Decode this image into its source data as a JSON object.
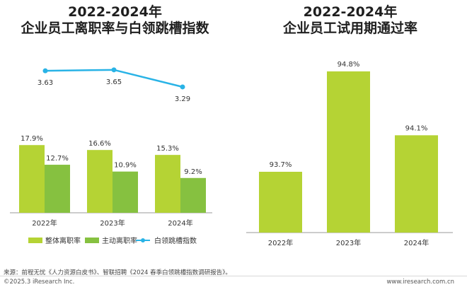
{
  "colors": {
    "overall": "#b5d334",
    "active": "#86c140",
    "index_line": "#29b3e6",
    "axis": "#9a9a9a"
  },
  "left_title_line1": "2022-2024年",
  "left_title_line2": "企业员工离职率与白领跳槽指数",
  "right_title_line1": "2022-2024年",
  "right_title_line2": "企业员工试用期通过率",
  "source": "来源：前程无忧《人力资源白皮书》、智联招聘《2024 春季白领跳槽指数调研报告》。",
  "copyright": "©2025.3 iResearch Inc.",
  "website": "www.iresearch.com.cn",
  "chart_data": [
    {
      "type": "bar",
      "categories": [
        "2022年",
        "2023年",
        "2024年"
      ],
      "series": [
        {
          "name": "整体离职率",
          "values": [
            17.9,
            16.6,
            15.3
          ],
          "labels": [
            "17.9%",
            "16.6%",
            "15.3%"
          ]
        },
        {
          "name": "主动离职率",
          "values": [
            12.7,
            10.9,
            9.2
          ],
          "labels": [
            "12.7%",
            "10.9%",
            "9.2%"
          ]
        }
      ],
      "line_series": {
        "name": "白领跳槽指数",
        "values": [
          3.63,
          3.65,
          3.29
        ],
        "labels": [
          "3.63",
          "3.65",
          "3.29"
        ]
      },
      "legend": "bottom"
    },
    {
      "type": "bar",
      "categories": [
        "2022年",
        "2023年",
        "2024年"
      ],
      "values": [
        93.7,
        94.8,
        94.1
      ],
      "labels": [
        "93.7%",
        "94.8%",
        "94.1%"
      ],
      "legend": "none"
    }
  ]
}
